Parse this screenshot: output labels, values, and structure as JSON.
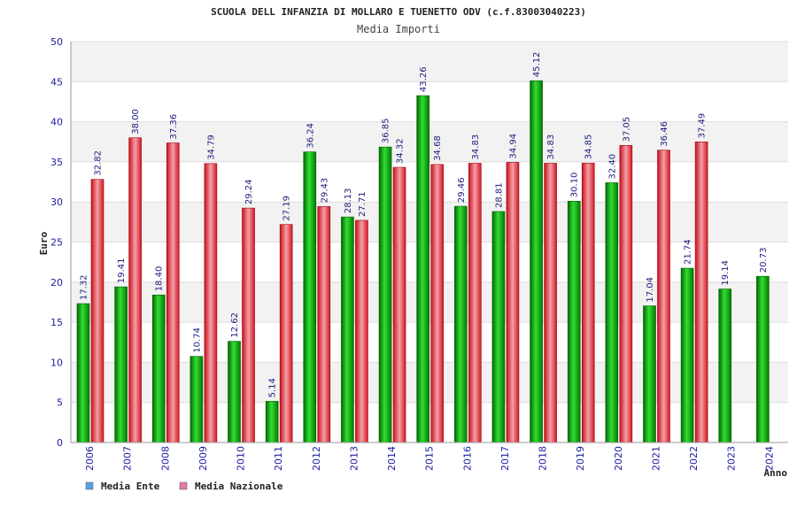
{
  "chart_data": {
    "type": "bar",
    "title": "SCUOLA DELL INFANZIA DI MOLLARO E TUENETTO ODV (c.f.83003040223)",
    "subtitle": "Media Importi",
    "ylabel": "Euro",
    "xlabel": "Anno",
    "ylim": [
      0,
      50
    ],
    "yticks": [
      "0",
      "5",
      "10",
      "15",
      "20",
      "25",
      "30",
      "35",
      "40",
      "45",
      "50"
    ],
    "categories": [
      "2006",
      "2007",
      "2008",
      "2009",
      "2010",
      "2011",
      "2012",
      "2013",
      "2014",
      "2015",
      "2016",
      "2017",
      "2018",
      "2019",
      "2020",
      "2021",
      "2022",
      "2023",
      "2024"
    ],
    "series": [
      {
        "name": "Media Ente",
        "color": "#00aa00",
        "values": [
          17.32,
          19.41,
          18.4,
          10.74,
          12.62,
          5.14,
          36.24,
          28.13,
          36.85,
          43.26,
          29.46,
          28.81,
          45.12,
          30.1,
          32.4,
          17.04,
          21.74,
          19.14,
          20.73
        ],
        "labels": [
          "17.32",
          "19.41",
          "18.40",
          "10.74",
          "12.62",
          "5.14",
          "36.24",
          "28.13",
          "36.85",
          "43.26",
          "29.46",
          "28.81",
          "45.12",
          "30.10",
          "32.40",
          "17.04",
          "21.74",
          "19.14",
          "20.73"
        ]
      },
      {
        "name": "Media Nazionale",
        "color": "#e8202a",
        "values": [
          32.82,
          38.0,
          37.36,
          34.79,
          29.24,
          27.19,
          29.43,
          27.71,
          34.32,
          34.68,
          34.83,
          34.94,
          34.83,
          34.85,
          37.05,
          36.46,
          37.49,
          null,
          null
        ],
        "labels": [
          "32.82",
          "38.00",
          "37.36",
          "34.79",
          "29.24",
          "27.19",
          "29.43",
          "27.71",
          "34.32",
          "34.68",
          "34.83",
          "34.94",
          "34.83",
          "34.85",
          "37.05",
          "36.46",
          "37.49",
          "",
          ""
        ]
      }
    ],
    "legend": {
      "position": "bottom-left",
      "items": [
        {
          "label": "Media Ente",
          "color": "#5aa0e6"
        },
        {
          "label": "Media Nazionale",
          "color": "#e87aa8"
        }
      ]
    },
    "grid": true
  }
}
